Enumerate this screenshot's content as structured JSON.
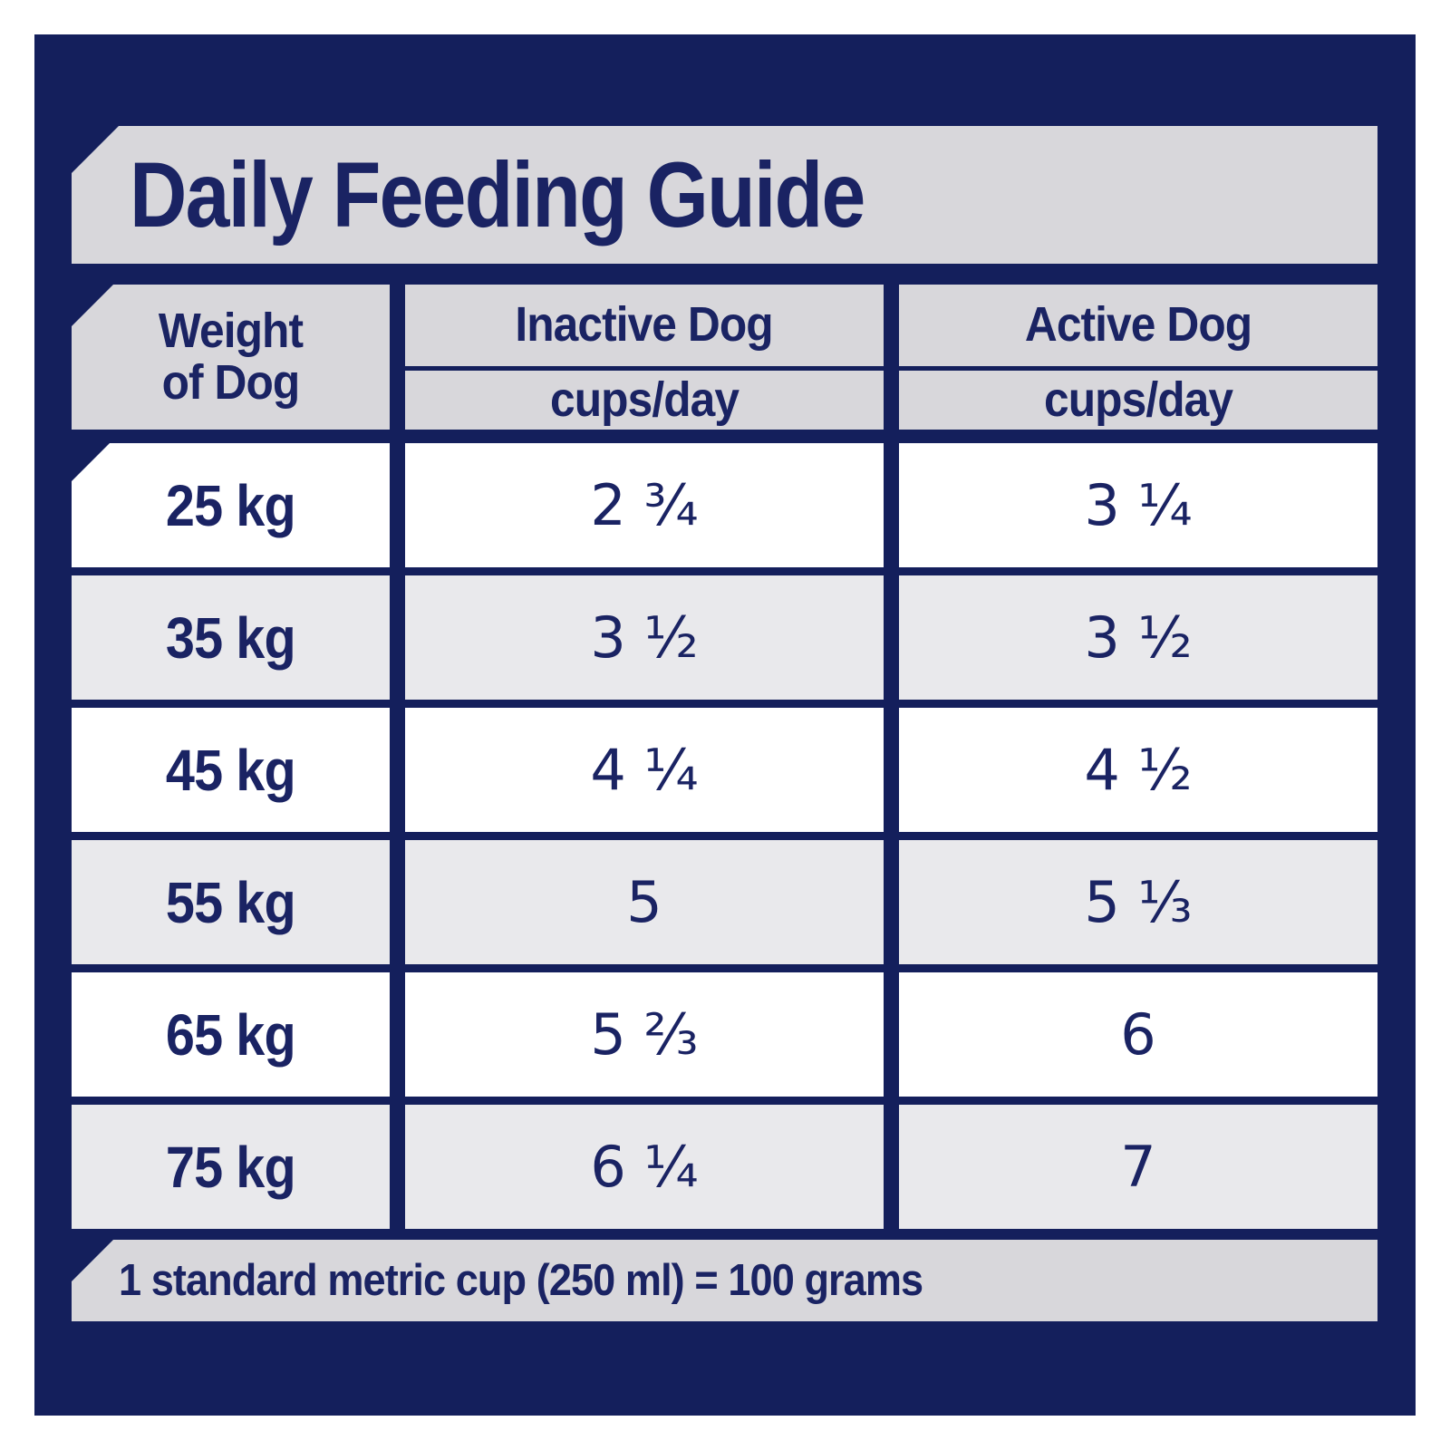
{
  "title": "Daily Feeding Guide",
  "footer": {
    "note": "1 standard metric cup (250 ml) = 100 grams"
  },
  "colors": {
    "panel_navy": "#141f5c",
    "band_gray": "#d8d7db",
    "row_gray": "#e9e9ec",
    "row_white": "#ffffff",
    "text_navy": "#1a2363"
  },
  "table": {
    "columns": {
      "weight": {
        "label": "Weight of Dog",
        "line1": "Weight",
        "line2": "of Dog"
      },
      "inactive": {
        "label": "Inactive Dog",
        "unit": "cups/day"
      },
      "active": {
        "label": "Active Dog",
        "unit": "cups/day"
      }
    },
    "rows": [
      {
        "weight": "25 kg",
        "inactive_cups": "2 ¾",
        "active_cups": "3 ¼"
      },
      {
        "weight": "35 kg",
        "inactive_cups": "3 ½",
        "active_cups": "3 ½"
      },
      {
        "weight": "45 kg",
        "inactive_cups": "4 ¼",
        "active_cups": "4 ½"
      },
      {
        "weight": "55 kg",
        "inactive_cups": "5",
        "active_cups": "5 ⅓"
      },
      {
        "weight": "65 kg",
        "inactive_cups": "5 ⅔",
        "active_cups": "6"
      },
      {
        "weight": "75 kg",
        "inactive_cups": "6 ¼",
        "active_cups": "7"
      }
    ]
  }
}
